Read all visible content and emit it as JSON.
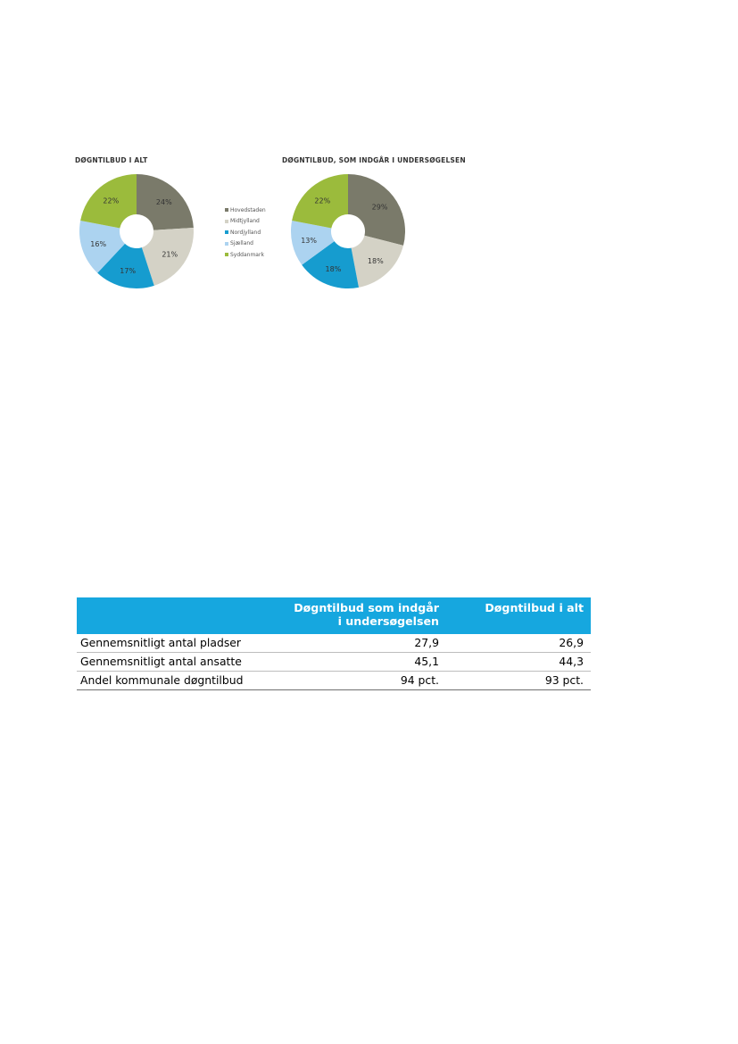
{
  "chart_data": [
    {
      "type": "pie",
      "title": "DØGNTILBUD I ALT",
      "categories": [
        "Hovedstaden",
        "Midtjylland",
        "Nordjylland",
        "Sjælland",
        "Syddanmark"
      ],
      "values": [
        24,
        21,
        17,
        16,
        22
      ],
      "labels": [
        "24%",
        "21%",
        "17%",
        "16%",
        "22%"
      ],
      "colors": [
        "#7a7a6a",
        "#d4d2c6",
        "#169ccf",
        "#acd3f0",
        "#9bbb3c"
      ],
      "donut": true
    },
    {
      "type": "pie",
      "title": "DØGNTILBUD, SOM INDGÅR I UNDERSØGELSEN",
      "categories": [
        "Hovedstaden",
        "Midtjylland",
        "Nordjylland",
        "Sjælland",
        "Syddanmark"
      ],
      "values": [
        29,
        18,
        18,
        13,
        22
      ],
      "labels": [
        "29%",
        "18%",
        "18%",
        "13%",
        "22%"
      ],
      "colors": [
        "#7a7a6a",
        "#d4d2c6",
        "#169ccf",
        "#acd3f0",
        "#9bbb3c"
      ],
      "donut": true
    }
  ],
  "legend": {
    "items": [
      {
        "label": "Hovedstaden",
        "color": "#7a7a6a"
      },
      {
        "label": "Midtjylland",
        "color": "#d4d2c6"
      },
      {
        "label": "Nordjylland",
        "color": "#169ccf"
      },
      {
        "label": "Sjælland",
        "color": "#acd3f0"
      },
      {
        "label": "Syddanmark",
        "color": "#9bbb3c"
      }
    ]
  },
  "table": {
    "headers": {
      "col1_line1": "Døgntilbud som indgår",
      "col1_line2": "i undersøgelsen",
      "col2": "Døgntilbud i alt"
    },
    "rows": [
      {
        "label": "Gennemsnitligt antal pladser",
        "col1": "27,9",
        "col2": "26,9"
      },
      {
        "label": "Gennemsnitligt antal ansatte",
        "col1": "45,1",
        "col2": "44,3"
      },
      {
        "label": "Andel kommunale døgntilbud",
        "col1": "94 pct.",
        "col2": "93 pct."
      }
    ],
    "header_color": "#16a7df"
  }
}
